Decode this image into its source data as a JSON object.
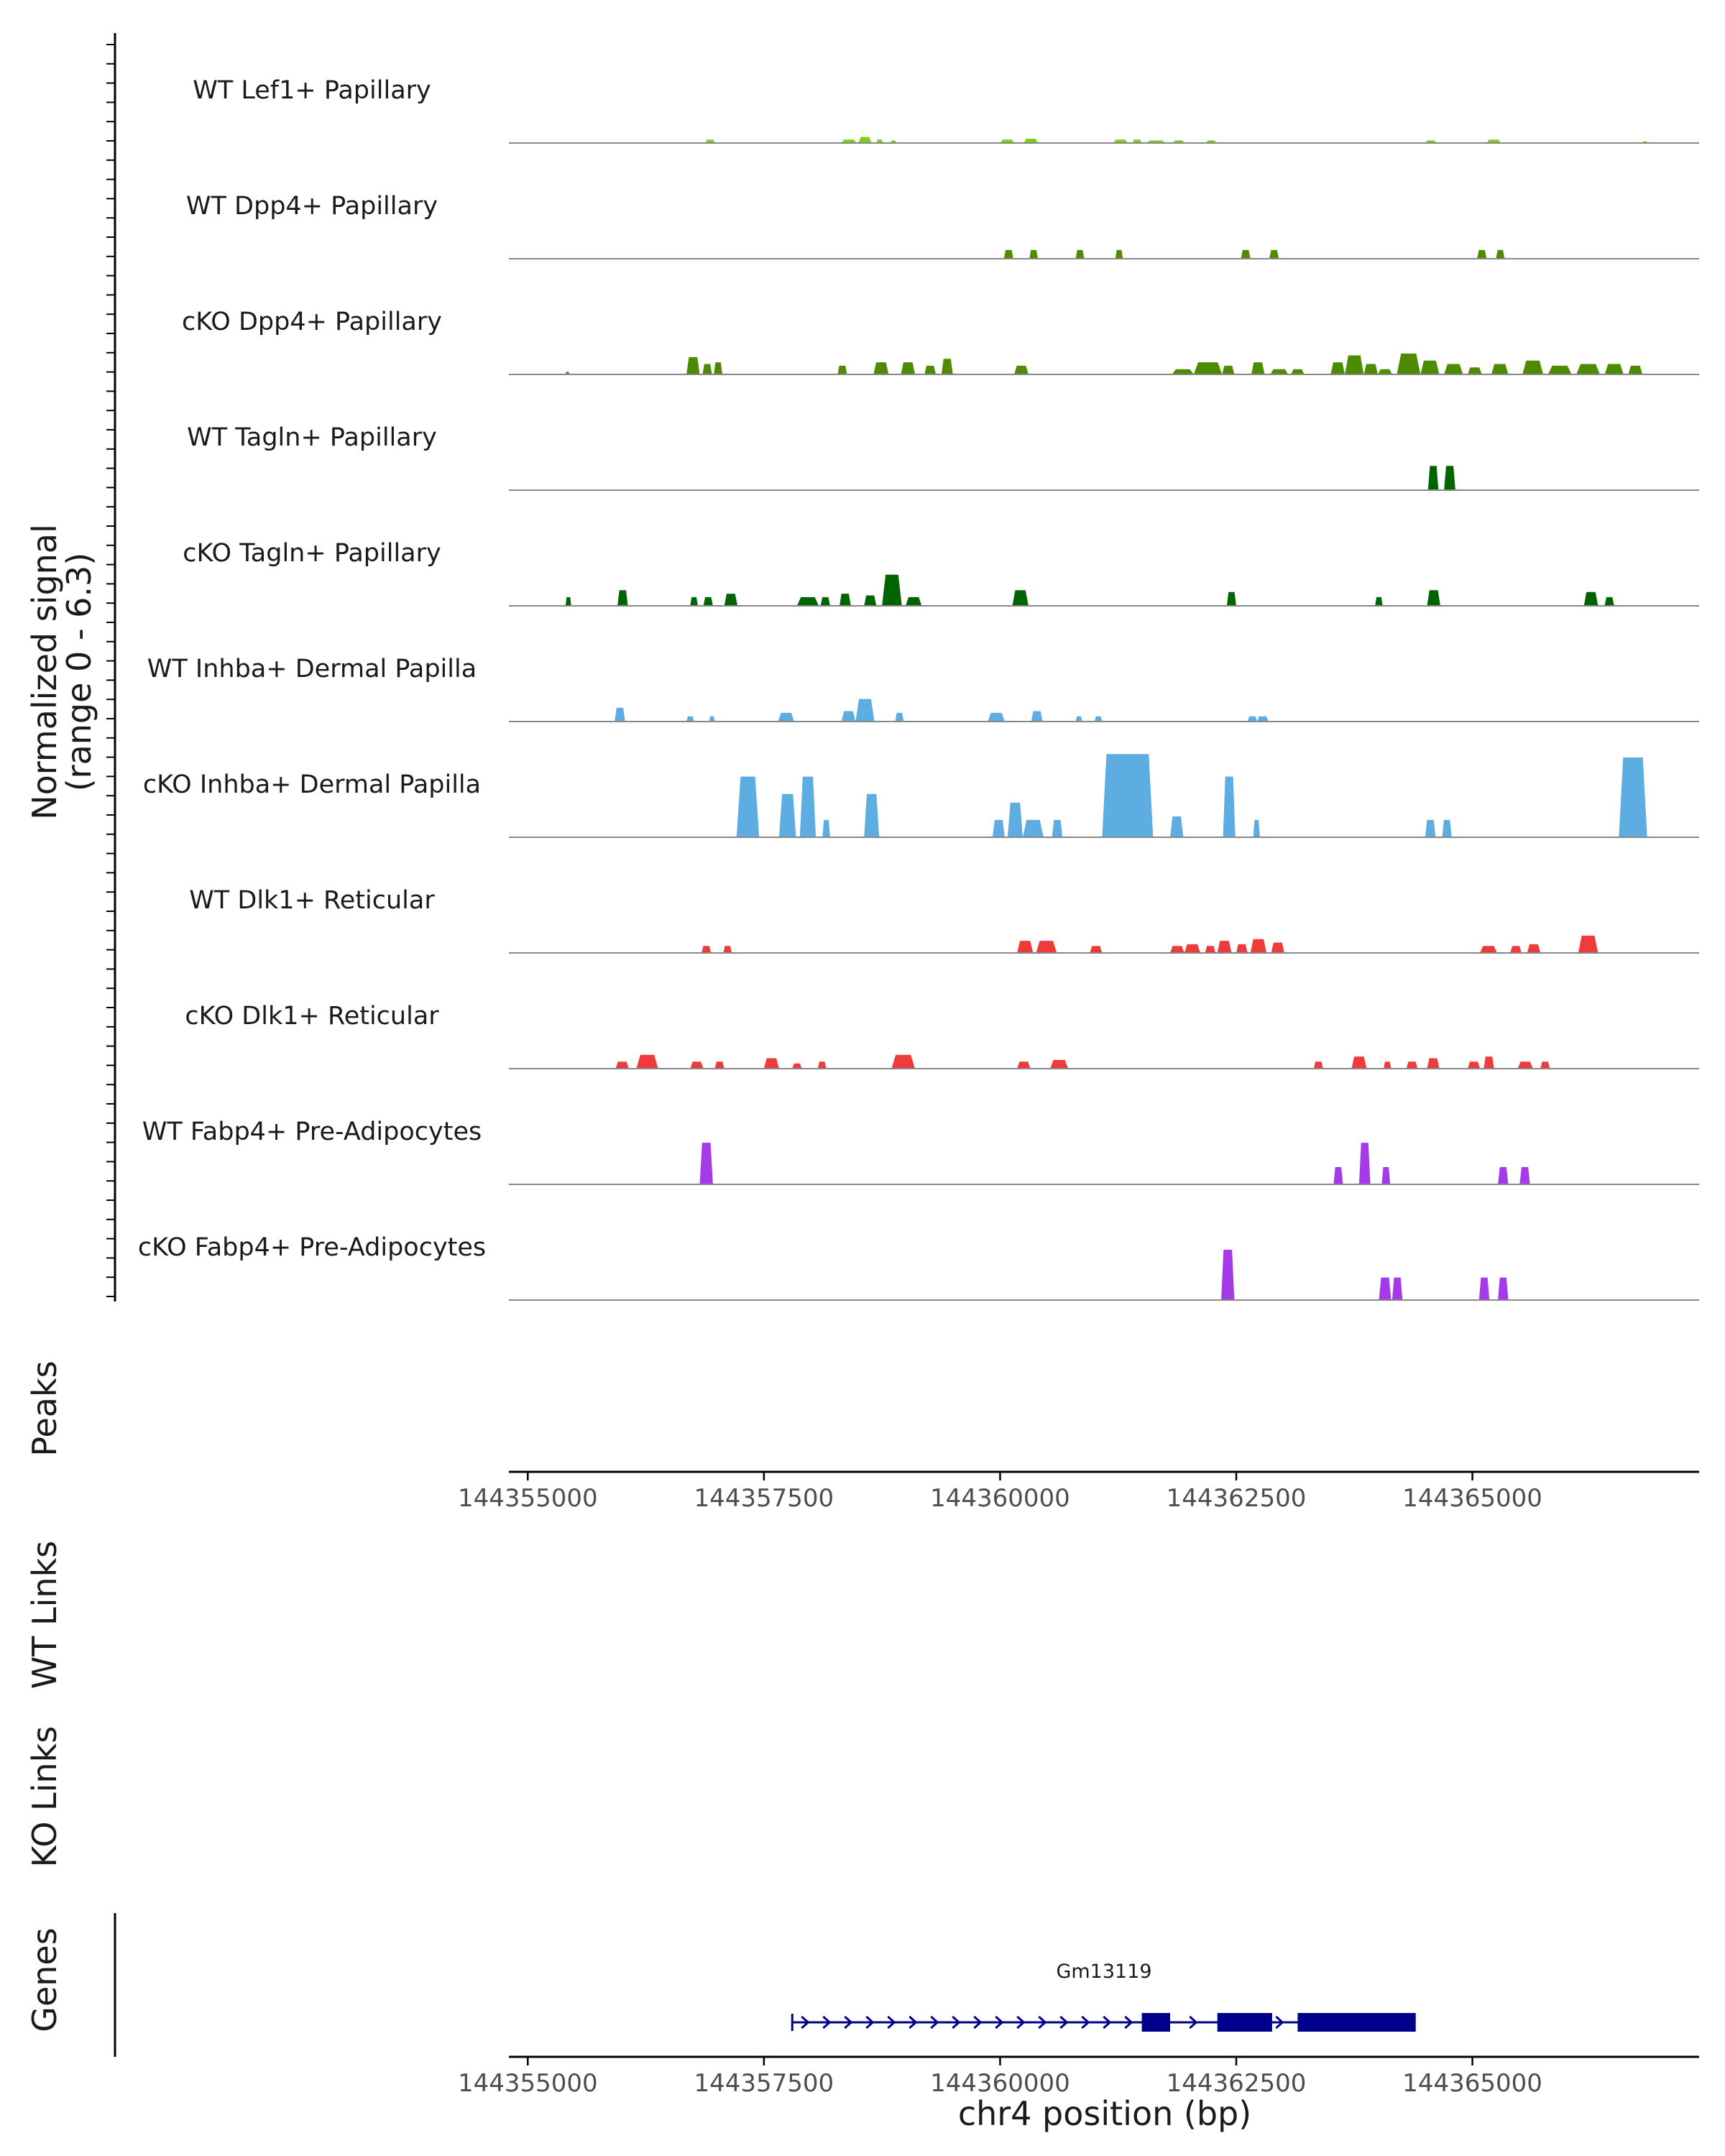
{
  "chart_data": {
    "type": "area",
    "title": "",
    "signal_label": "Normalized signal",
    "signal_range_label": "(range 0 - 6.3)",
    "ylim": [
      0,
      6.3
    ],
    "xlabel": "chr4 position (bp)",
    "xlim": [
      144354800,
      144367400
    ],
    "x_ticks": [
      144355000,
      144357500,
      144360000,
      144362500,
      144365000
    ],
    "x_tick_labels": [
      "144355000",
      "144357500",
      "144360000",
      "144362500",
      "144365000"
    ],
    "panel_labels": {
      "peaks": "Peaks",
      "wt_links": "WT Links",
      "ko_links": "KO Links",
      "genes": "Genes"
    },
    "tracks": [
      {
        "name": "WT Lef1+ Papillary",
        "color": "#7CCD1D",
        "peaks": [
          [
            144356880,
            144356980,
            0.2
          ],
          [
            144358320,
            144358480,
            0.2
          ],
          [
            144358500,
            144358640,
            0.35
          ],
          [
            144358690,
            144358760,
            0.2
          ],
          [
            144358840,
            144358900,
            0.15
          ],
          [
            144360000,
            144360150,
            0.2
          ],
          [
            144360250,
            144360400,
            0.25
          ],
          [
            144361200,
            144361350,
            0.2
          ],
          [
            144361400,
            144361500,
            0.2
          ],
          [
            144361550,
            144361750,
            0.15
          ],
          [
            144361830,
            144361950,
            0.15
          ],
          [
            144362180,
            144362290,
            0.15
          ],
          [
            144364500,
            144364620,
            0.15
          ],
          [
            144365150,
            144365300,
            0.2
          ],
          [
            144366800,
            144366850,
            0.1
          ]
        ]
      },
      {
        "name": "WT Dpp4+ Papillary",
        "color": "#4E8B00",
        "peaks": [
          [
            144360040,
            144360140,
            0.5
          ],
          [
            144360310,
            144360400,
            0.5
          ],
          [
            144360800,
            144360890,
            0.5
          ],
          [
            144361220,
            144361300,
            0.5
          ],
          [
            144362550,
            144362650,
            0.5
          ],
          [
            144362850,
            144362950,
            0.5
          ],
          [
            144365050,
            144365150,
            0.5
          ],
          [
            144365250,
            144365340,
            0.5
          ]
        ]
      },
      {
        "name": "cKO Dpp4+ Papillary",
        "color": "#4E8B00",
        "peaks": [
          [
            144355400,
            144355440,
            0.15
          ],
          [
            144356680,
            144356820,
            1.0
          ],
          [
            144356850,
            144356950,
            0.6
          ],
          [
            144356970,
            144357060,
            0.7
          ],
          [
            144358280,
            144358380,
            0.5
          ],
          [
            144358660,
            144358820,
            0.7
          ],
          [
            144358950,
            144359100,
            0.7
          ],
          [
            144359200,
            144359320,
            0.5
          ],
          [
            144359380,
            144359500,
            0.9
          ],
          [
            144360150,
            144360300,
            0.5
          ],
          [
            144361820,
            144362050,
            0.3
          ],
          [
            144362050,
            144362350,
            0.7
          ],
          [
            144362350,
            144362480,
            0.5
          ],
          [
            144362660,
            144362800,
            0.7
          ],
          [
            144362860,
            144363050,
            0.3
          ],
          [
            144363080,
            144363220,
            0.3
          ],
          [
            144363500,
            144363650,
            0.7
          ],
          [
            144363650,
            144363850,
            1.1
          ],
          [
            144363850,
            144364000,
            0.6
          ],
          [
            144364000,
            144364150,
            0.3
          ],
          [
            144364200,
            144364450,
            1.2
          ],
          [
            144364450,
            144364650,
            0.8
          ],
          [
            144364700,
            144364900,
            0.6
          ],
          [
            144364950,
            144365100,
            0.4
          ],
          [
            144365200,
            144365380,
            0.6
          ],
          [
            144365530,
            144365750,
            0.8
          ],
          [
            144365800,
            144366050,
            0.5
          ],
          [
            144366100,
            144366350,
            0.6
          ],
          [
            144366400,
            144366600,
            0.6
          ],
          [
            144366650,
            144366800,
            0.5
          ]
        ]
      },
      {
        "name": "WT Tagln+ Papillary",
        "color": "#006400",
        "peaks": [
          [
            144364530,
            144364640,
            1.4
          ],
          [
            144364700,
            144364820,
            1.4
          ]
        ]
      },
      {
        "name": "cKO Tagln+ Papillary",
        "color": "#006400",
        "peaks": [
          [
            144355400,
            144355460,
            0.5
          ],
          [
            144355950,
            144356060,
            0.9
          ],
          [
            144356720,
            144356800,
            0.5
          ],
          [
            144356860,
            144356960,
            0.5
          ],
          [
            144357080,
            144357220,
            0.7
          ],
          [
            144357850,
            144358080,
            0.5
          ],
          [
            144358100,
            144358200,
            0.5
          ],
          [
            144358300,
            144358420,
            0.7
          ],
          [
            144358560,
            144358690,
            0.6
          ],
          [
            144358750,
            144358960,
            1.8
          ],
          [
            144359000,
            144359170,
            0.5
          ],
          [
            144360130,
            144360300,
            0.9
          ],
          [
            144362400,
            144362500,
            0.8
          ],
          [
            144363970,
            144364050,
            0.5
          ],
          [
            144364520,
            144364660,
            0.9
          ],
          [
            144366180,
            144366330,
            0.8
          ],
          [
            144366400,
            144366500,
            0.5
          ]
        ]
      },
      {
        "name": "WT Inhba+ Dermal Papilla",
        "color": "#5DADE2",
        "peaks": [
          [
            144355920,
            144356030,
            0.8
          ],
          [
            144356680,
            144356760,
            0.3
          ],
          [
            144356920,
            144356980,
            0.3
          ],
          [
            144357650,
            144357820,
            0.5
          ],
          [
            144358320,
            144358470,
            0.6
          ],
          [
            144358470,
            144358670,
            1.3
          ],
          [
            144358890,
            144358980,
            0.5
          ],
          [
            144359870,
            144360050,
            0.5
          ],
          [
            144360330,
            144360450,
            0.6
          ],
          [
            144360800,
            144360870,
            0.3
          ],
          [
            144361000,
            144361080,
            0.3
          ],
          [
            144362620,
            144362720,
            0.3
          ],
          [
            144362720,
            144362840,
            0.3
          ]
        ]
      },
      {
        "name": "cKO Inhba+ Dermal Papilla",
        "color": "#5DADE2",
        "peaks": [
          [
            144357210,
            144357450,
            3.5
          ],
          [
            144357660,
            144357840,
            2.5
          ],
          [
            144357880,
            144358050,
            3.5
          ],
          [
            144358120,
            144358200,
            1.0
          ],
          [
            144358560,
            144358720,
            2.5
          ],
          [
            144359920,
            144360050,
            1.0
          ],
          [
            144360080,
            144360240,
            2.0
          ],
          [
            144360240,
            144360460,
            1.0
          ],
          [
            144360550,
            144360660,
            1.0
          ],
          [
            144361080,
            144361620,
            4.8
          ],
          [
            144361800,
            144361940,
            1.2
          ],
          [
            144362360,
            144362490,
            3.5
          ],
          [
            144362680,
            144362750,
            1.0
          ],
          [
            144364500,
            144364610,
            1.0
          ],
          [
            144364680,
            144364780,
            1.0
          ],
          [
            144366550,
            144366850,
            4.6
          ]
        ]
      },
      {
        "name": "WT Dlk1+ Reticular",
        "color": "#EE3B3B",
        "peaks": [
          [
            144356840,
            144356940,
            0.4
          ],
          [
            144357070,
            144357160,
            0.4
          ],
          [
            144360180,
            144360350,
            0.7
          ],
          [
            144360380,
            144360600,
            0.7
          ],
          [
            144360950,
            144361080,
            0.4
          ],
          [
            144361800,
            144361950,
            0.4
          ],
          [
            144361950,
            144362120,
            0.5
          ],
          [
            144362170,
            144362280,
            0.4
          ],
          [
            144362300,
            144362450,
            0.7
          ],
          [
            144362500,
            144362620,
            0.5
          ],
          [
            144362650,
            144362820,
            0.8
          ],
          [
            144362870,
            144363010,
            0.6
          ],
          [
            144365080,
            144365260,
            0.4
          ],
          [
            144365400,
            144365520,
            0.4
          ],
          [
            144365580,
            144365720,
            0.5
          ],
          [
            144366120,
            144366330,
            1.0
          ]
        ]
      },
      {
        "name": "cKO Dlk1+ Reticular",
        "color": "#EE3B3B",
        "peaks": [
          [
            144355930,
            144356070,
            0.4
          ],
          [
            144356150,
            144356380,
            0.8
          ],
          [
            144356720,
            144356860,
            0.4
          ],
          [
            144356980,
            144357080,
            0.4
          ],
          [
            144357500,
            144357660,
            0.6
          ],
          [
            144357800,
            144357900,
            0.3
          ],
          [
            144358070,
            144358160,
            0.4
          ],
          [
            144358850,
            144359100,
            0.8
          ],
          [
            144360180,
            144360320,
            0.4
          ],
          [
            144360530,
            144360720,
            0.5
          ],
          [
            144363320,
            144363420,
            0.4
          ],
          [
            144363720,
            144363880,
            0.7
          ],
          [
            144364060,
            144364140,
            0.4
          ],
          [
            144364300,
            144364420,
            0.4
          ],
          [
            144364520,
            144364650,
            0.6
          ],
          [
            144364950,
            144365080,
            0.4
          ],
          [
            144365120,
            144365230,
            0.7
          ],
          [
            144365480,
            144365640,
            0.4
          ],
          [
            144365720,
            144365820,
            0.4
          ]
        ]
      },
      {
        "name": "WT Fabp4+ Pre-Adipocytes",
        "color": "#A53BE8",
        "peaks": [
          [
            144356820,
            144356960,
            2.4
          ],
          [
            144363530,
            144363630,
            1.0
          ],
          [
            144363800,
            144363920,
            2.4
          ],
          [
            144364040,
            144364130,
            1.0
          ],
          [
            144365270,
            144365380,
            1.0
          ],
          [
            144365500,
            144365610,
            1.0
          ]
        ]
      },
      {
        "name": "cKO Fabp4+ Pre-Adipocytes",
        "color": "#A53BE8",
        "peaks": [
          [
            144362340,
            144362480,
            2.9
          ],
          [
            144364010,
            144364140,
            1.3
          ],
          [
            144364150,
            144364260,
            1.3
          ],
          [
            144365070,
            144365180,
            1.3
          ],
          [
            144365270,
            144365380,
            1.3
          ]
        ]
      }
    ],
    "genes": [
      {
        "name": "Gm13119",
        "start": 144357800,
        "end": 144364400,
        "strand": "+",
        "exons": [
          [
            144361500,
            144361800
          ],
          [
            144362300,
            144362880
          ],
          [
            144363150,
            144364400
          ]
        ]
      }
    ]
  }
}
